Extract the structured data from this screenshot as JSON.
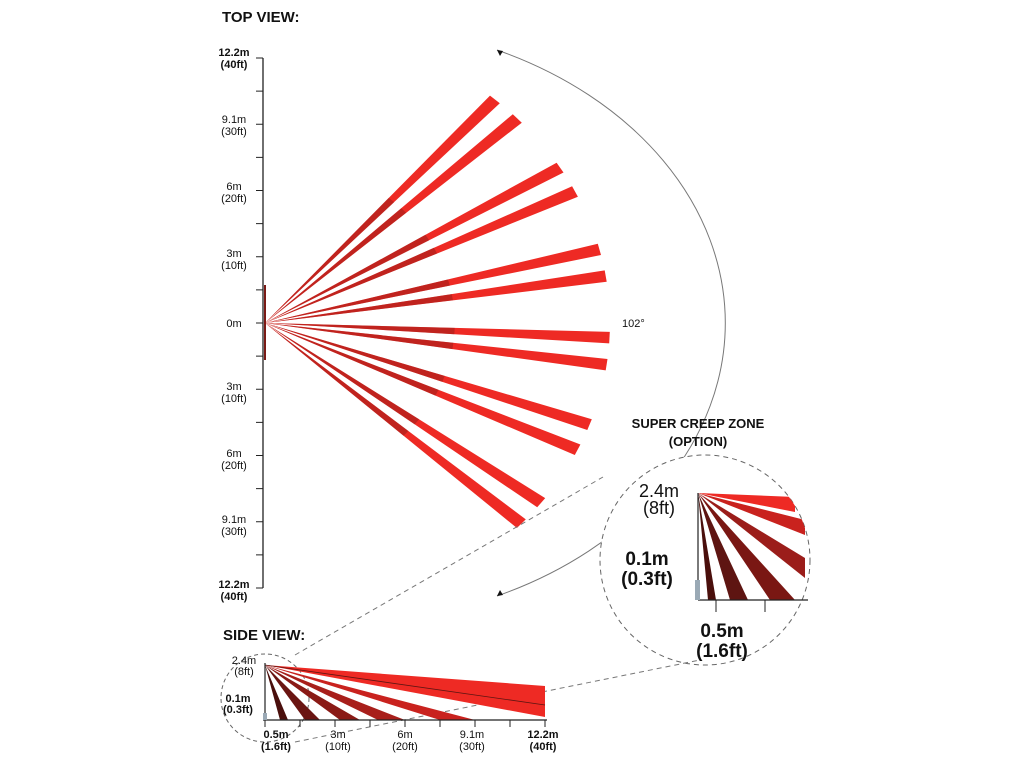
{
  "top_view": {
    "title": "TOP VIEW:",
    "distance_labels": [
      {
        "m": "12.2m",
        "ft": "(40ft)",
        "bold": true
      },
      {
        "m": "9.1m",
        "ft": "(30ft)",
        "bold": false
      },
      {
        "m": "6m",
        "ft": "(20ft)",
        "bold": false
      },
      {
        "m": "3m",
        "ft": "(10ft)",
        "bold": false
      },
      {
        "m": "0m",
        "ft": "",
        "bold": false
      },
      {
        "m": "3m",
        "ft": "(10ft)",
        "bold": false
      },
      {
        "m": "6m",
        "ft": "(20ft)",
        "bold": false
      },
      {
        "m": "9.1m",
        "ft": "(30ft)",
        "bold": false
      },
      {
        "m": "12.2m",
        "ft": "(40ft)",
        "bold": true
      }
    ],
    "angle_label": "102°",
    "beam_pairs": 6
  },
  "creep_zone": {
    "title_line1": "SUPER CREEP ZONE",
    "title_line2": "(OPTION)",
    "height_label_m": "2.4m",
    "height_label_ft": "(8ft)",
    "low_label_m": "0.1m",
    "low_label_ft": "(0.3ft)",
    "dist_label_m": "0.5m",
    "dist_label_ft": "(1.6ft)"
  },
  "side_view": {
    "title": "SIDE VIEW:",
    "height_label_m": "2.4m",
    "height_label_ft": "(8ft)",
    "low_label_m": "0.1m",
    "low_label_ft": "(0.3ft)",
    "x_labels": [
      {
        "m": "0.5m",
        "ft": "(1.6ft)",
        "bold": true
      },
      {
        "m": "3m",
        "ft": "(10ft)",
        "bold": false
      },
      {
        "m": "6m",
        "ft": "(20ft)",
        "bold": false
      },
      {
        "m": "9.1m",
        "ft": "(30ft)",
        "bold": false
      },
      {
        "m": "12.2m",
        "ft": "(40ft)",
        "bold": true
      }
    ]
  },
  "colors": {
    "beam_red": "#ee2a24",
    "beam_dark": "#9b1d1a",
    "beam_maroon": "#5e1512",
    "axis": "#222222",
    "guide_line": "#777777"
  }
}
